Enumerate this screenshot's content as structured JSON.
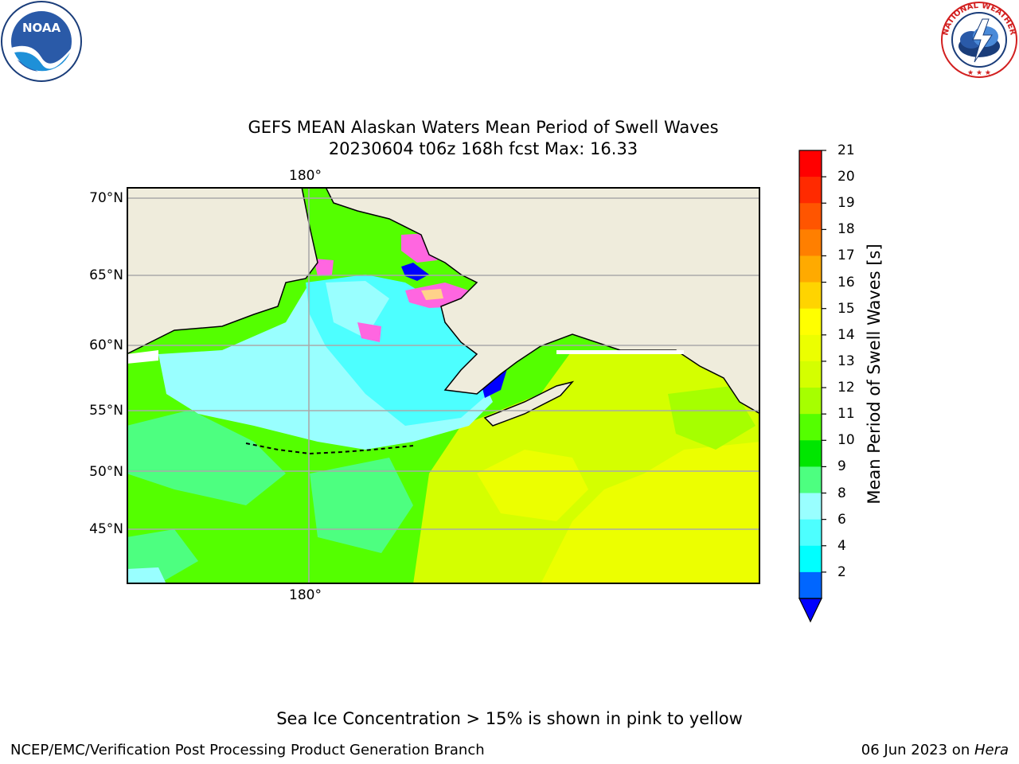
{
  "title": {
    "line1": "GEFS MEAN Alaskan Waters Mean Period of Swell Waves",
    "line2": "20230604 t06z 168h fcst   Max: 16.33"
  },
  "map": {
    "top_lon_label": "180°",
    "bottom_lon_label": "180°",
    "lat_labels": [
      "70°N",
      "65°N",
      "60°N",
      "55°N",
      "50°N",
      "45°N"
    ]
  },
  "colorbar": {
    "label": "Mean Period of Swell Waves [s]",
    "ticks": [
      "21",
      "20",
      "19",
      "18",
      "17",
      "16",
      "15",
      "14",
      "13",
      "12",
      "11",
      "10",
      "9",
      "8",
      "6",
      "4",
      "2"
    ],
    "colors": [
      "#ff0000",
      "#ff2a00",
      "#ff5500",
      "#ff7f00",
      "#ffaa00",
      "#ffd400",
      "#ffff00",
      "#ecff00",
      "#d4ff00",
      "#a6ff00",
      "#54ff00",
      "#00e600",
      "#4dff80",
      "#99ffff",
      "#4dffff",
      "#00ffff",
      "#0066ff"
    ],
    "extend_color": "#0000ff"
  },
  "legend_note": "Sea Ice Concentration > 15% is shown in pink to yellow",
  "footer": {
    "left": "NCEP/EMC/Verification Post Processing Product Generation Branch",
    "right_date": "06 Jun 2023 on ",
    "right_host": "Hera"
  },
  "logos": {
    "noaa": "NOAA",
    "nws": "NATIONAL WEATHER SERVICE"
  }
}
